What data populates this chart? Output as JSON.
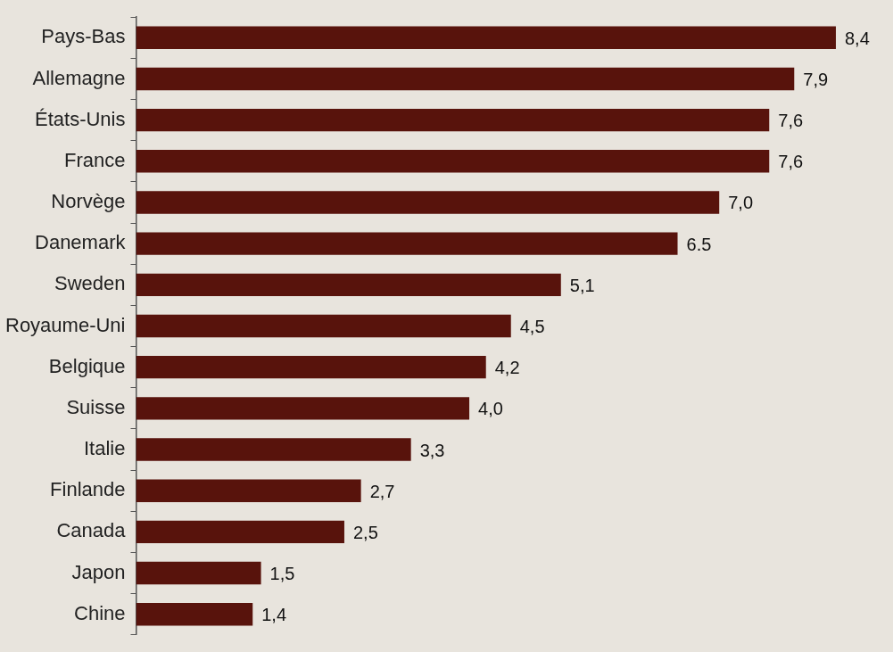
{
  "chart_data": {
    "type": "bar",
    "orientation": "horizontal",
    "categories": [
      "Pays-Bas",
      "Allemagne",
      "États-Unis",
      "France",
      "Norvège",
      "Danemark",
      "Sweden",
      "Royaume-Uni",
      "Belgique",
      "Suisse",
      "Italie",
      "Finlande",
      "Canada",
      "Japon",
      "Chine"
    ],
    "values": [
      8.4,
      7.9,
      7.6,
      7.6,
      7.0,
      6.5,
      5.1,
      4.5,
      4.2,
      4.0,
      3.3,
      2.7,
      2.5,
      1.5,
      1.4
    ],
    "value_labels": [
      "8,4",
      "7,9",
      "7,6",
      "7,6",
      "7,0",
      "6.5",
      "5,1",
      "4,5",
      "4,2",
      "4,0",
      "3,3",
      "2,7",
      "2,5",
      "1,5",
      "1,4"
    ],
    "color": "#58130c",
    "legend": false
  }
}
